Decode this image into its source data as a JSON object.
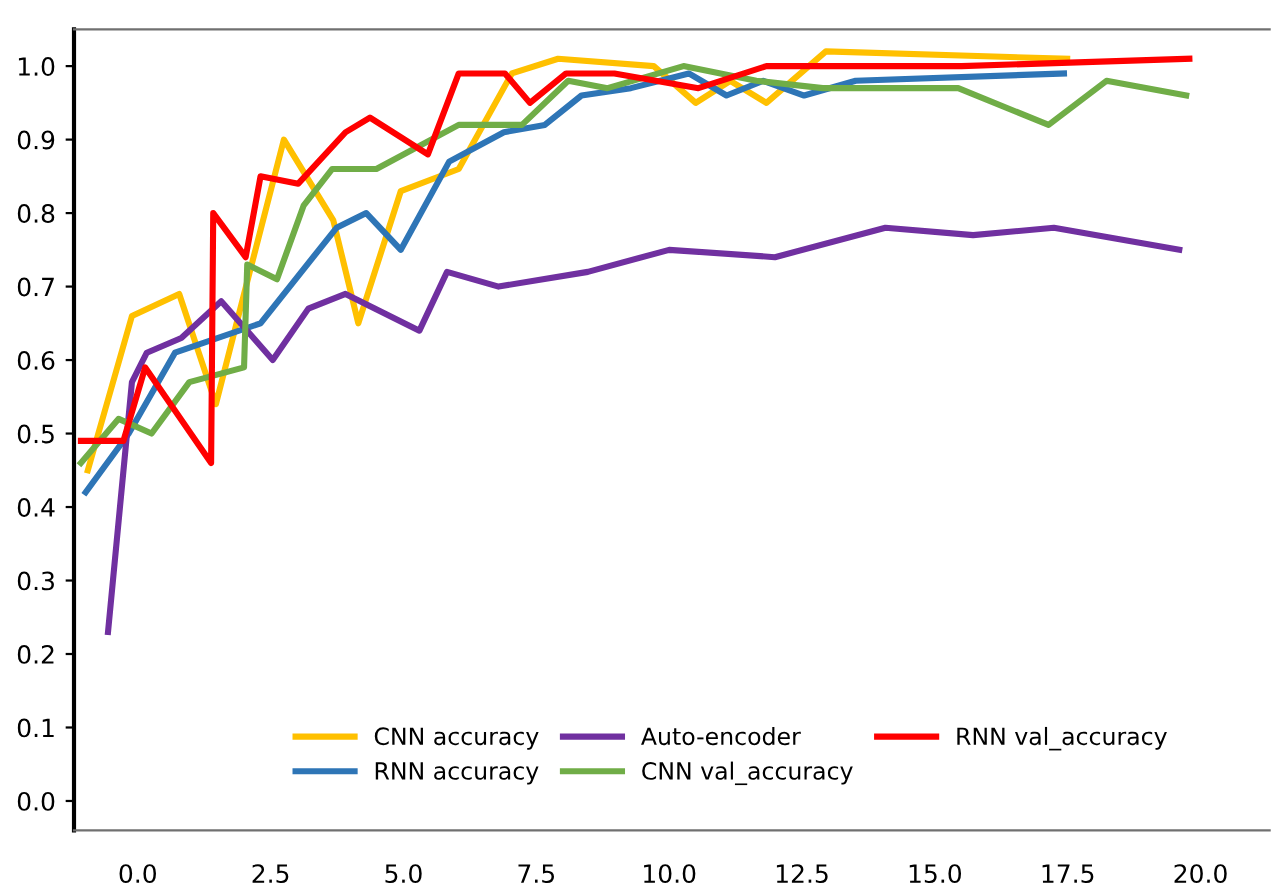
{
  "chart_data": {
    "type": "line",
    "xlim": [
      -1.2,
      21.3
    ],
    "ylim": [
      -0.04,
      1.05
    ],
    "xticks": [
      {
        "value": 0,
        "label": "0.0"
      },
      {
        "value": 2.5,
        "label": "2.5"
      },
      {
        "value": 5,
        "label": "5.0"
      },
      {
        "value": 7.5,
        "label": "7.5"
      },
      {
        "value": 10,
        "label": "10.0"
      },
      {
        "value": 12.5,
        "label": "12.5"
      },
      {
        "value": 15,
        "label": "15.0"
      },
      {
        "value": 17.5,
        "label": "17.5"
      },
      {
        "value": 20,
        "label": "20.0"
      }
    ],
    "yticks": [
      {
        "value": 0,
        "label": "0.0"
      },
      {
        "value": 0.1,
        "label": "0.1"
      },
      {
        "value": 0.2,
        "label": "0.2"
      },
      {
        "value": 0.3,
        "label": "0.3"
      },
      {
        "value": 0.4,
        "label": "0.4"
      },
      {
        "value": 0.5,
        "label": "0.5"
      },
      {
        "value": 0.6,
        "label": "0.6"
      },
      {
        "value": 0.7,
        "label": "0.7"
      },
      {
        "value": 0.8,
        "label": "0.8"
      },
      {
        "value": 0.9,
        "label": "0.9"
      },
      {
        "value": 1.0,
        "label": "1.0"
      }
    ],
    "grid": false,
    "legend": "bottom",
    "marker": "none",
    "line_style": "solid",
    "series": [
      {
        "name": "CNN accuracy",
        "color": "#ffc000",
        "x": [
          -0.94,
          -0.11,
          0.78,
          1.47,
          2.0,
          2.75,
          3.68,
          4.15,
          4.95,
          6.04,
          7.04,
          7.91,
          9.71,
          10.5,
          11.15,
          11.83,
          12.95,
          17.49
        ],
        "values": [
          0.45,
          0.66,
          0.69,
          0.54,
          0.69,
          0.9,
          0.79,
          0.65,
          0.83,
          0.86,
          0.99,
          1.01,
          1.0,
          0.95,
          0.98,
          0.95,
          1.02,
          1.01
        ]
      },
      {
        "name": "RNN accuracy",
        "color": "#2e75b6",
        "x": [
          -0.98,
          -0.17,
          0.7,
          2.31,
          3.74,
          4.3,
          4.95,
          5.86,
          6.89,
          7.66,
          8.35,
          9.28,
          10.37,
          11.08,
          11.77,
          12.54,
          13.51,
          17.43
        ],
        "values": [
          0.42,
          0.5,
          0.61,
          0.65,
          0.78,
          0.8,
          0.75,
          0.87,
          0.91,
          0.92,
          0.96,
          0.97,
          0.99,
          0.96,
          0.98,
          0.96,
          0.98,
          0.99
        ]
      },
      {
        "name": "Auto-encoder",
        "color": "#7030a0",
        "x": [
          -0.56,
          -0.11,
          0.17,
          0.82,
          1.57,
          2.54,
          3.21,
          3.91,
          5.3,
          5.82,
          6.79,
          8.47,
          10.0,
          11.99,
          14.07,
          15.72,
          17.24,
          19.6
        ],
        "values": [
          0.23,
          0.57,
          0.61,
          0.63,
          0.68,
          0.6,
          0.67,
          0.69,
          0.64,
          0.72,
          0.7,
          0.72,
          0.75,
          0.74,
          0.78,
          0.77,
          0.78,
          0.75
        ]
      },
      {
        "name": "CNN val_accuracy",
        "color": "#70ad47",
        "x": [
          -1.07,
          -0.36,
          0.26,
          0.97,
          2.0,
          2.06,
          2.62,
          3.12,
          3.66,
          4.49,
          6.04,
          7.23,
          8.1,
          8.84,
          10.27,
          11.64,
          12.89,
          15.44,
          17.14,
          18.23,
          19.73
        ],
        "values": [
          0.46,
          0.52,
          0.5,
          0.57,
          0.59,
          0.73,
          0.71,
          0.81,
          0.86,
          0.86,
          0.92,
          0.92,
          0.98,
          0.97,
          1.0,
          0.98,
          0.97,
          0.97,
          0.92,
          0.98,
          0.96
        ]
      },
      {
        "name": "RNN val_accuracy",
        "color": "#ff0000",
        "x": [
          -1.07,
          -0.27,
          0.14,
          1.38,
          1.42,
          2.03,
          2.31,
          3.02,
          3.91,
          4.37,
          5.46,
          6.04,
          6.91,
          7.38,
          8.06,
          8.97,
          10.55,
          11.83,
          13.07,
          15.5,
          19.79
        ],
        "values": [
          0.49,
          0.49,
          0.59,
          0.46,
          0.8,
          0.74,
          0.85,
          0.84,
          0.91,
          0.93,
          0.88,
          0.99,
          0.99,
          0.95,
          0.99,
          0.99,
          0.97,
          1.0,
          1.0,
          1.0,
          1.01
        ]
      }
    ]
  }
}
